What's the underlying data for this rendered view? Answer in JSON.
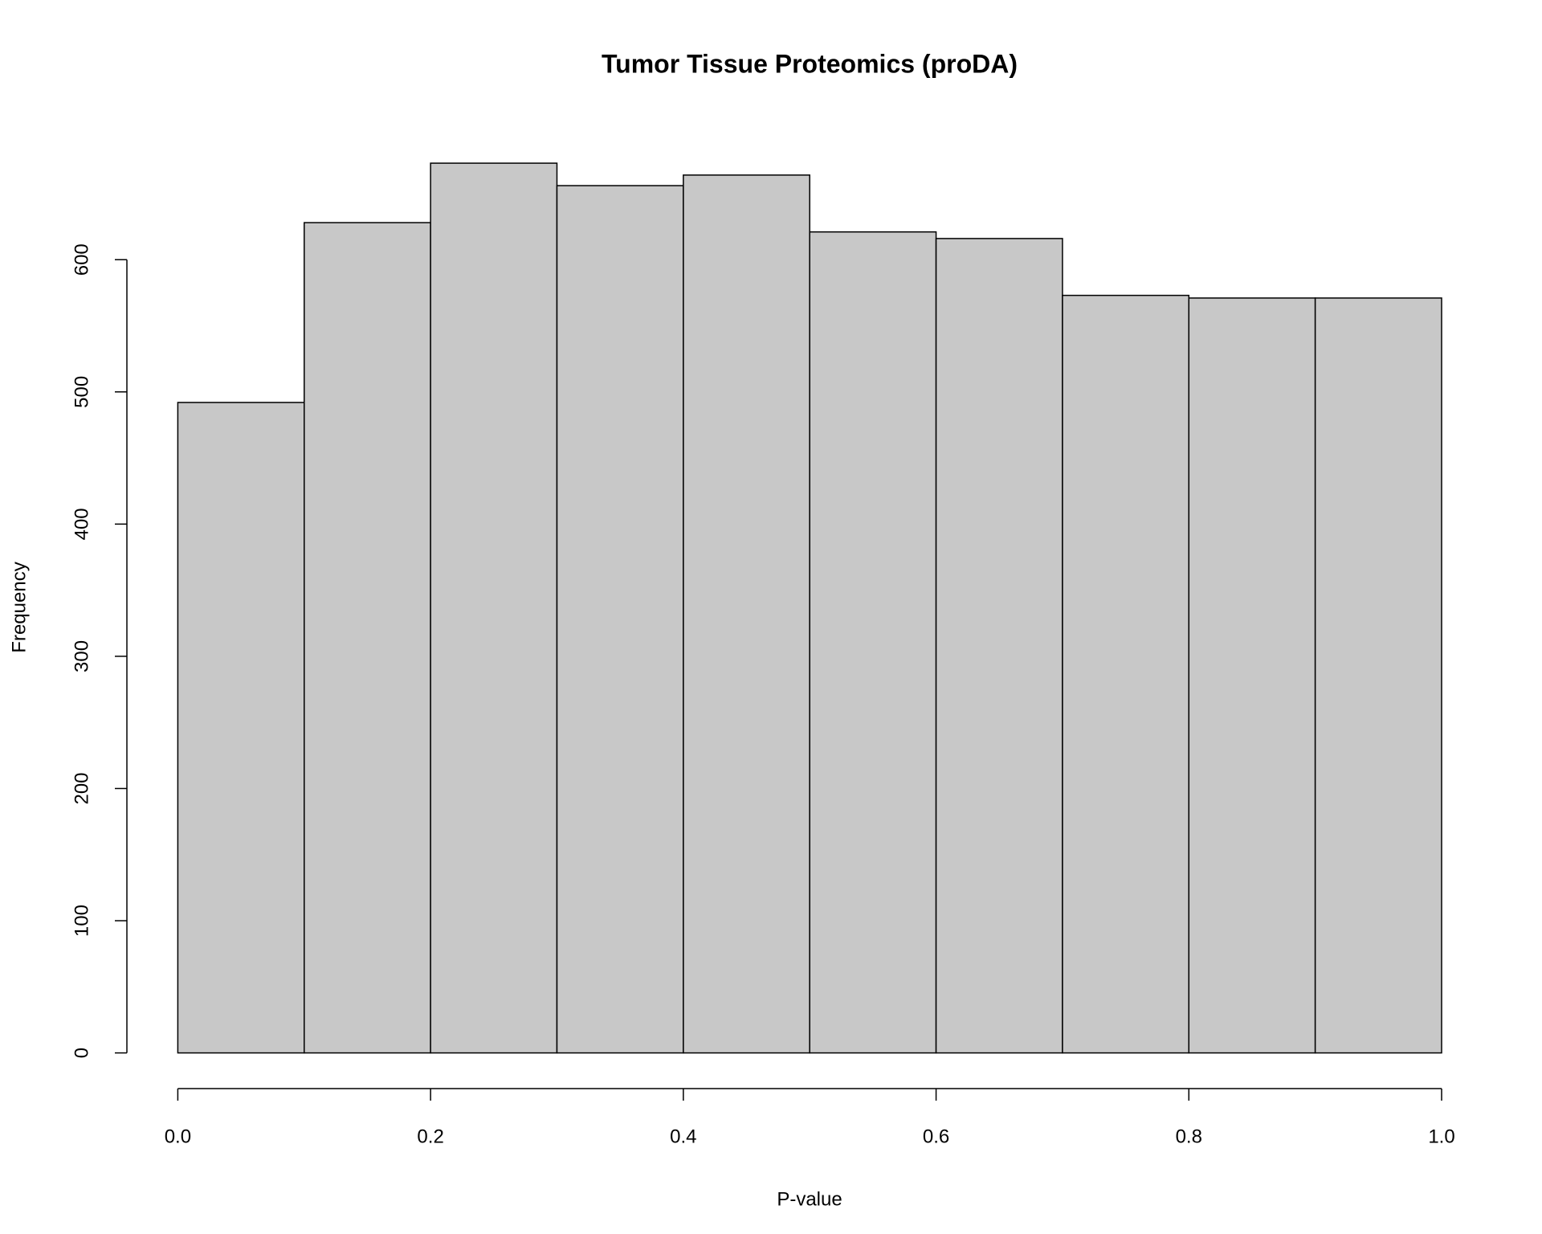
{
  "chart_data": {
    "type": "histogram",
    "title": "Tumor Tissue Proteomics (proDA)",
    "x_label": "P-value",
    "y_label": "Frequency",
    "bins": [
      0,
      0.1,
      0.2,
      0.3,
      0.4,
      0.5,
      0.6,
      0.7,
      0.8,
      0.9,
      1.0
    ],
    "values": [
      492,
      628,
      673,
      656,
      664,
      621,
      616,
      573,
      571,
      571
    ],
    "color": "#c8c8c8",
    "xlim": [
      0,
      1.0
    ],
    "xticks": [
      {
        "value": 0,
        "label": "0.0"
      },
      0.2,
      0.4,
      0.6,
      0.8,
      {
        "value": 1.0,
        "label": "1.0"
      }
    ],
    "ylim": [
      0,
      673
    ],
    "yticks": [
      0,
      100,
      200,
      300,
      400,
      500,
      600
    ],
    "grid": false
  }
}
